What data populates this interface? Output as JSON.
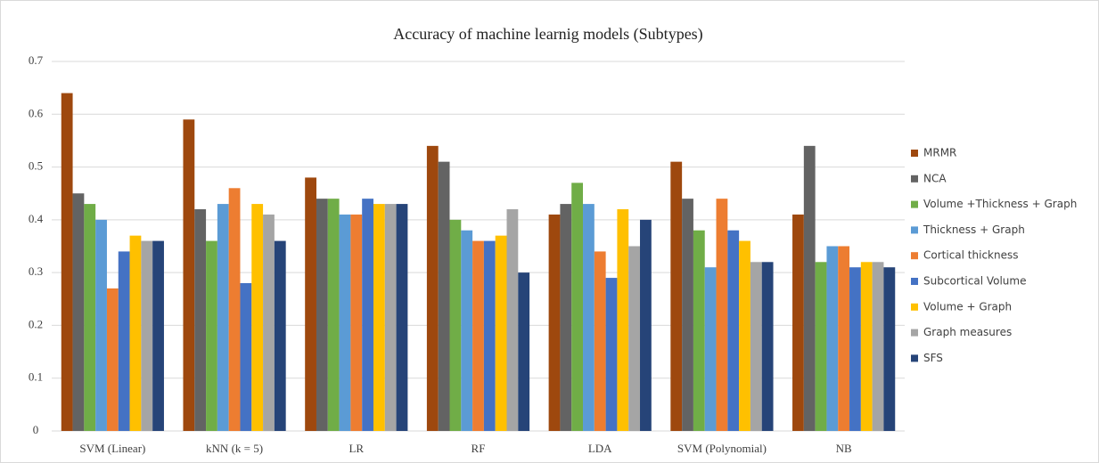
{
  "chart_data": {
    "type": "bar",
    "title": "Accuracy of machine learnig models (Subtypes)",
    "categories": [
      "SVM (Linear)",
      "kNN (k = 5)",
      "LR",
      "RF",
      "LDA",
      "SVM (Polynomial)",
      "NB"
    ],
    "series": [
      {
        "name": "MRMR",
        "color": "#9e480e",
        "values": [
          0.64,
          0.59,
          0.48,
          0.54,
          0.41,
          0.51,
          0.41
        ]
      },
      {
        "name": "NCA",
        "color": "#636363",
        "values": [
          0.45,
          0.42,
          0.44,
          0.51,
          0.43,
          0.44,
          0.54
        ]
      },
      {
        "name": "Volume +Thickness + Graph",
        "color": "#70ad47",
        "values": [
          0.43,
          0.36,
          0.44,
          0.4,
          0.47,
          0.38,
          0.32
        ]
      },
      {
        "name": "Thickness + Graph",
        "color": "#5b9bd5",
        "values": [
          0.4,
          0.43,
          0.41,
          0.38,
          0.43,
          0.31,
          0.35
        ]
      },
      {
        "name": "Cortical thickness",
        "color": "#ed7d31",
        "values": [
          0.27,
          0.46,
          0.41,
          0.36,
          0.34,
          0.44,
          0.35
        ]
      },
      {
        "name": "Subcortical Volume",
        "color": "#4472c4",
        "values": [
          0.34,
          0.28,
          0.44,
          0.36,
          0.29,
          0.38,
          0.31
        ]
      },
      {
        "name": "Volume + Graph",
        "color": "#ffc000",
        "values": [
          0.37,
          0.43,
          0.43,
          0.37,
          0.42,
          0.36,
          0.32
        ]
      },
      {
        "name": "Graph measures",
        "color": "#a5a5a5",
        "values": [
          0.36,
          0.41,
          0.43,
          0.42,
          0.35,
          0.32,
          0.32
        ]
      },
      {
        "name": "SFS",
        "color": "#264478",
        "values": [
          0.36,
          0.36,
          0.43,
          0.3,
          0.4,
          0.32,
          0.31
        ]
      }
    ],
    "ylim": [
      0,
      0.7
    ],
    "yticks": [
      0,
      0.1,
      0.2,
      0.3,
      0.4,
      0.5,
      0.6,
      0.7
    ],
    "grid": true,
    "legend": "right"
  }
}
